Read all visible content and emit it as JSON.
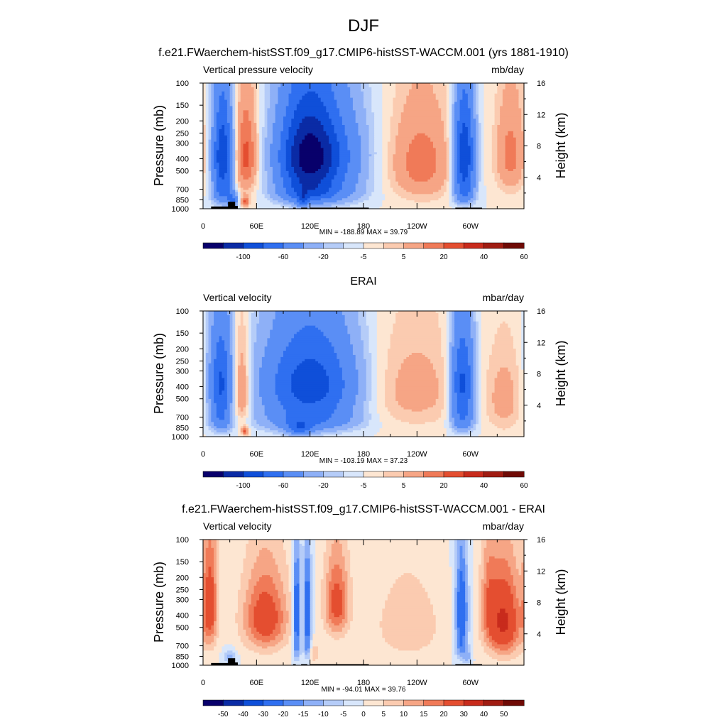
{
  "figure_title": "DJF",
  "chart_data": [
    {
      "type": "heatmap",
      "title": "f.e21.FWaerchem-histSST.f09_g17.CMIP6-histSST-WACCM.001 (yrs 1881-1910)",
      "left_label": "Vertical pressure velocity",
      "right_label": "mb/day",
      "ylabel": "Pressure (mb)",
      "y2label": "Height (km)",
      "x_ticks": [
        "0",
        "60E",
        "120E",
        "180",
        "120W",
        "60W"
      ],
      "y_ticks": [
        "100",
        "150",
        "200",
        "250",
        "300",
        "400",
        "500",
        "700",
        "850",
        "1000"
      ],
      "y2_ticks": [
        "16",
        "12",
        "8",
        "4"
      ],
      "stats": "MIN = -188.89  MAX =  39.79",
      "colorbar": {
        "labels": [
          "-100",
          "-60",
          "-20",
          "-5",
          "5",
          "20",
          "40",
          "60"
        ],
        "colors": [
          "#08006b",
          "#0a2ba5",
          "#0f4fd9",
          "#2f6ff0",
          "#5a8ef5",
          "#8eb0f7",
          "#b5ccf8",
          "#d8e6fb",
          "#fde6d2",
          "#fbcbb0",
          "#f6a585",
          "#f07a58",
          "#e44e30",
          "#c82b1c",
          "#a01c12",
          "#6f0a05"
        ]
      },
      "has_land_mask": true
    },
    {
      "type": "heatmap",
      "title": "ERAI",
      "left_label": "Vertical velocity",
      "right_label": "mbar/day",
      "ylabel": "Pressure (mb)",
      "y2label": "Height (km)",
      "x_ticks": [
        "0",
        "60E",
        "120E",
        "180",
        "120W",
        "60W"
      ],
      "y_ticks": [
        "100",
        "150",
        "200",
        "250",
        "300",
        "400",
        "500",
        "700",
        "850",
        "1000"
      ],
      "y2_ticks": [
        "16",
        "12",
        "8",
        "4"
      ],
      "stats": "MIN = -103.19  MAX =  37.23",
      "colorbar": {
        "labels": [
          "-100",
          "-60",
          "-20",
          "-5",
          "5",
          "20",
          "40",
          "60"
        ],
        "colors": [
          "#08006b",
          "#0a2ba5",
          "#0f4fd9",
          "#2f6ff0",
          "#5a8ef5",
          "#8eb0f7",
          "#b5ccf8",
          "#d8e6fb",
          "#fde6d2",
          "#fbcbb0",
          "#f6a585",
          "#f07a58",
          "#e44e30",
          "#c82b1c",
          "#a01c12",
          "#6f0a05"
        ]
      },
      "has_land_mask": false
    },
    {
      "type": "heatmap",
      "title": "f.e21.FWaerchem-histSST.f09_g17.CMIP6-histSST-WACCM.001 - ERAI",
      "left_label": "Vertical velocity",
      "right_label": "mbar/day",
      "ylabel": "Pressure (mb)",
      "y2label": "Height (km)",
      "x_ticks": [
        "0",
        "60E",
        "120E",
        "180",
        "120W",
        "60W"
      ],
      "y_ticks": [
        "100",
        "150",
        "200",
        "250",
        "300",
        "400",
        "500",
        "700",
        "850",
        "1000"
      ],
      "y2_ticks": [
        "16",
        "12",
        "8",
        "4"
      ],
      "stats": "MIN = -94.01  MAX =  39.76",
      "colorbar": {
        "labels": [
          "-50",
          "-40",
          "-30",
          "-20",
          "-15",
          "-10",
          "-5",
          "0",
          "5",
          "10",
          "15",
          "20",
          "30",
          "40",
          "50"
        ],
        "colors": [
          "#08006b",
          "#0a2ba5",
          "#0f4fd9",
          "#2f6ff0",
          "#5a8ef5",
          "#8eb0f7",
          "#b5ccf8",
          "#d8e6fb",
          "#fde6d2",
          "#fbcbb0",
          "#f6a585",
          "#f07a58",
          "#e44e30",
          "#c82b1c",
          "#a01c12",
          "#6f0a05"
        ]
      },
      "has_land_mask": true
    }
  ]
}
